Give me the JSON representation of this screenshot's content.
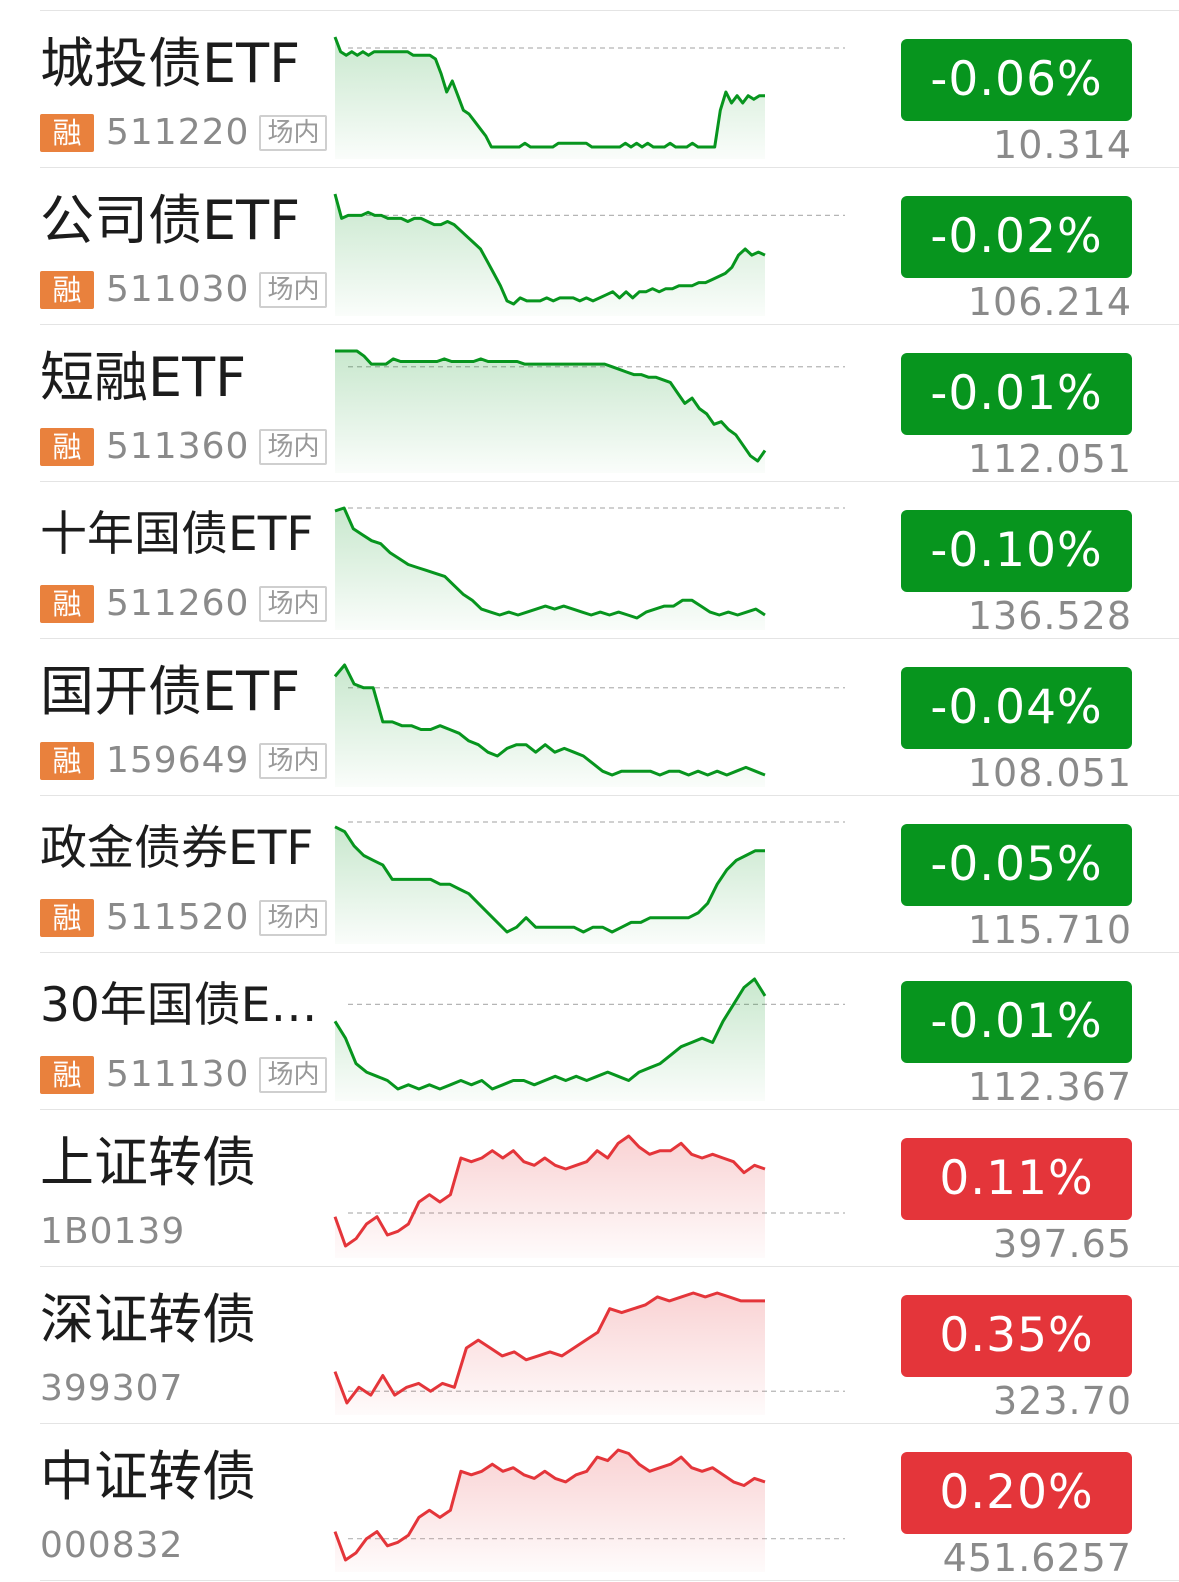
{
  "rows": [
    {
      "name": "城投债ETF",
      "rong": "融",
      "code": "511220",
      "market": "场内",
      "change": "-0.06%",
      "price": "10.314",
      "trend": "down",
      "series": [
        100,
        96,
        95,
        96,
        95,
        96,
        95,
        96,
        96,
        96,
        96,
        96,
        96,
        96,
        95,
        95,
        95,
        95,
        94,
        90,
        85,
        88,
        84,
        80,
        79,
        77,
        75,
        73,
        70,
        70,
        70,
        70,
        70,
        70,
        71,
        70,
        70,
        70,
        70,
        70,
        71,
        71,
        71,
        71,
        71,
        71,
        70,
        70,
        70,
        70,
        70,
        70,
        71,
        70,
        71,
        70,
        71,
        70,
        70,
        70,
        71,
        70,
        70,
        70,
        71,
        70,
        70,
        70,
        70,
        80,
        85,
        82,
        84,
        82,
        84,
        83,
        84,
        84
      ],
      "ref": 97
    },
    {
      "name": "公司债ETF",
      "rong": "融",
      "code": "511030",
      "market": "场内",
      "change": "-0.02%",
      "price": "106.214",
      "trend": "down",
      "series": [
        100,
        92,
        93,
        93,
        93,
        94,
        93,
        93,
        92,
        92,
        92,
        91,
        92,
        92,
        91,
        90,
        90,
        91,
        90,
        88,
        86,
        84,
        82,
        78,
        74,
        70,
        65,
        64,
        66,
        65,
        65,
        65,
        66,
        65,
        66,
        66,
        66,
        65,
        66,
        65,
        66,
        67,
        68,
        66,
        68,
        66,
        68,
        68,
        69,
        68,
        69,
        69,
        70,
        70,
        70,
        71,
        71,
        72,
        73,
        74,
        76,
        80,
        82,
        80,
        81,
        80
      ],
      "ref": 93
    },
    {
      "name": "短融ETF",
      "rong": "融",
      "code": "511360",
      "market": "场内",
      "change": "-0.01%",
      "price": "112.051",
      "trend": "down",
      "series": [
        100,
        100,
        100,
        100,
        98,
        95,
        95,
        95,
        97,
        96,
        96,
        96,
        96,
        96,
        96,
        97,
        96,
        96,
        96,
        96,
        97,
        96,
        96,
        96,
        96,
        96,
        95,
        95,
        95,
        95,
        95,
        95,
        95,
        95,
        95,
        95,
        95,
        95,
        94,
        93,
        92,
        91,
        91,
        90,
        90,
        89,
        88,
        84,
        80,
        82,
        78,
        76,
        72,
        73,
        70,
        68,
        64,
        60,
        58,
        62
      ],
      "ref": 94
    },
    {
      "name": "十年国债ETF",
      "rong": "融",
      "code": "511260",
      "market": "场内",
      "change": "-0.10%",
      "price": "136.528",
      "trend": "down",
      "series": [
        100,
        101,
        94,
        92,
        90,
        89,
        86,
        84,
        82,
        81,
        80,
        79,
        78,
        75,
        72,
        70,
        67,
        66,
        65,
        66,
        65,
        66,
        67,
        68,
        67,
        68,
        67,
        66,
        65,
        66,
        65,
        66,
        65,
        64,
        66,
        67,
        68,
        68,
        70,
        70,
        68,
        66,
        65,
        66,
        65,
        66,
        67,
        65
      ],
      "ref": 101
    },
    {
      "name": "国开债ETF",
      "rong": "融",
      "code": "159649",
      "market": "场内",
      "change": "-0.04%",
      "price": "108.051",
      "trend": "down",
      "series": [
        100,
        103,
        98,
        97,
        97,
        88,
        88,
        87,
        87,
        86,
        86,
        87,
        86,
        85,
        83,
        82,
        80,
        79,
        81,
        82,
        82,
        80,
        82,
        80,
        81,
        80,
        79,
        77,
        75,
        74,
        75,
        75,
        75,
        75,
        74,
        75,
        75,
        74,
        75,
        74,
        75,
        74,
        75,
        76,
        75,
        74
      ],
      "ref": 97
    },
    {
      "name": "政金债券ETF",
      "rong": "融",
      "code": "511520",
      "market": "场内",
      "change": "-0.05%",
      "price": "115.710",
      "trend": "down",
      "series": [
        100,
        99,
        96,
        94,
        93,
        92,
        89,
        89,
        89,
        89,
        89,
        88,
        88,
        87,
        86,
        84,
        82,
        80,
        78,
        79,
        81,
        79,
        79,
        79,
        79,
        79,
        78,
        79,
        79,
        78,
        79,
        80,
        80,
        81,
        81,
        81,
        81,
        81,
        82,
        84,
        88,
        91,
        93,
        94,
        95,
        95
      ],
      "ref": 101
    },
    {
      "name": "30年国债ET...",
      "rong": "融",
      "code": "511130",
      "market": "场内",
      "change": "-0.01%",
      "price": "112.367",
      "trend": "down",
      "series": [
        100,
        96,
        90,
        88,
        87,
        86,
        84,
        85,
        84,
        85,
        84,
        85,
        86,
        85,
        86,
        84,
        85,
        86,
        86,
        85,
        86,
        87,
        86,
        87,
        86,
        87,
        88,
        87,
        86,
        88,
        89,
        90,
        92,
        94,
        95,
        96,
        95,
        100,
        104,
        108,
        110,
        106
      ],
      "ref": 104
    },
    {
      "name": "上证转债",
      "code": "1B0139",
      "change": "0.11%",
      "price": "397.65",
      "trend": "up",
      "series": [
        100,
        92,
        94,
        98,
        100,
        95,
        96,
        98,
        104,
        106,
        104,
        106,
        116,
        115,
        116,
        118,
        116,
        118,
        115,
        114,
        116,
        114,
        113,
        114,
        115,
        118,
        116,
        120,
        122,
        119,
        117,
        118,
        118,
        120,
        117,
        116,
        117,
        116,
        115,
        112,
        114,
        113
      ],
      "ref": 101
    },
    {
      "name": "深证转债",
      "code": "399307",
      "change": "0.35%",
      "price": "323.70",
      "trend": "up",
      "series": [
        100,
        92,
        96,
        94,
        99,
        94,
        96,
        97,
        95,
        97,
        96,
        106,
        108,
        106,
        104,
        105,
        103,
        104,
        105,
        104,
        106,
        108,
        110,
        116,
        115,
        116,
        117,
        119,
        118,
        119,
        120,
        119,
        120,
        119,
        118,
        118,
        118
      ],
      "ref": 95
    },
    {
      "name": "中证转债",
      "code": "000832",
      "change": "0.20%",
      "price": "451.6257",
      "trend": "up",
      "series": [
        100,
        92,
        94,
        98,
        100,
        96,
        97,
        99,
        104,
        106,
        104,
        106,
        117,
        116,
        117,
        119,
        117,
        118,
        116,
        115,
        117,
        115,
        114,
        116,
        117,
        121,
        120,
        123,
        122,
        119,
        117,
        118,
        119,
        121,
        118,
        117,
        118,
        116,
        114,
        113,
        115,
        114
      ],
      "ref": 98
    }
  ]
}
